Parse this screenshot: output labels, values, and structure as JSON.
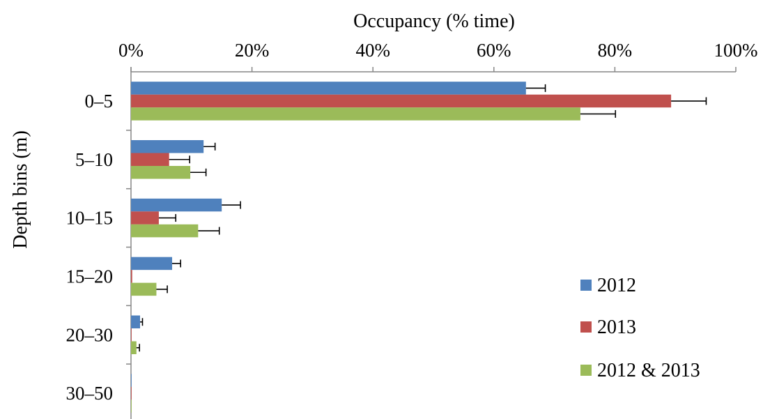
{
  "chart_data": {
    "type": "bar",
    "orientation": "horizontal",
    "xlabel": "Occupancy (% time)",
    "ylabel": "Depth bins (m)",
    "xlim": [
      0,
      100
    ],
    "x_ticks": [
      "0%",
      "20%",
      "40%",
      "60%",
      "80%",
      "100%"
    ],
    "x_tick_values": [
      0,
      20,
      40,
      60,
      80,
      100
    ],
    "x_axis_position": "top",
    "grid": false,
    "legend_position": "bottom-right",
    "categories": [
      "0–5",
      "5–10",
      "10–15",
      "15–20",
      "20–30",
      "30–50"
    ],
    "series": [
      {
        "name": "2012",
        "color": "#4F81BD",
        "values": [
          65.3,
          12.0,
          15.0,
          6.8,
          1.5,
          0.1
        ],
        "errors": [
          3.2,
          1.9,
          3.1,
          1.4,
          0.4,
          0.05
        ]
      },
      {
        "name": "2013",
        "color": "#C0504D",
        "values": [
          89.3,
          6.3,
          4.6,
          0.2,
          0.1,
          0.1
        ],
        "errors": [
          5.8,
          3.4,
          2.8,
          0.1,
          0.05,
          0.05
        ]
      },
      {
        "name": "2012 & 2013",
        "color": "#9BBB59",
        "values": [
          74.3,
          9.8,
          11.1,
          4.2,
          0.9,
          0.1
        ],
        "errors": [
          5.8,
          2.6,
          3.5,
          1.8,
          0.5,
          0.05
        ]
      }
    ]
  }
}
